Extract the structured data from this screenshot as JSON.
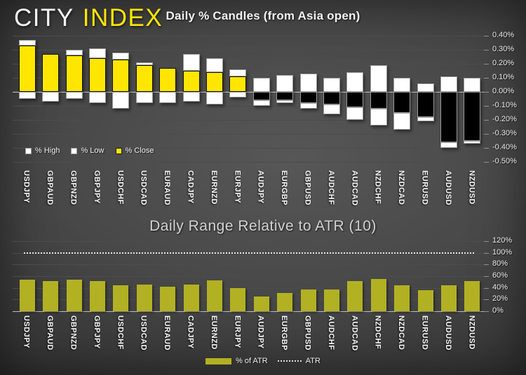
{
  "logo": {
    "city": "CITY",
    "index": "INDEX"
  },
  "colors": {
    "background_center": "#575757",
    "background_edge": "#1c1c1c",
    "candle_close_up": "#FFE600",
    "candle_close_down": "#000000",
    "candle_high_low": "#FFFFFF",
    "atr_bar": "#B2B123",
    "logo_index_yellow": "#FFE600",
    "gridline": "#4C4C4C",
    "zero_line": "#C6C6C6",
    "axis_text": "#E8E8E8"
  },
  "chart_data": [
    {
      "type": "bar",
      "subtype": "stacked-candle",
      "title": "Daily % Candles (from Asia open)",
      "legend": [
        "% High",
        "% Low",
        "% Close"
      ],
      "legend_position": "bottom-left",
      "grid": true,
      "y_axis_side": "right",
      "ylim": [
        -0.5,
        0.4
      ],
      "yticks": [
        "0.40%",
        "0.30%",
        "0.20%",
        "0.10%",
        "0.00%",
        "-0.10%",
        "-0.20%",
        "-0.30%",
        "-0.40%",
        "-0.50%"
      ],
      "categories": [
        "USDJPY",
        "GBPAUD",
        "GBPNZD",
        "GBPJPY",
        "USDCHF",
        "USDCAD",
        "EURAUD",
        "CADJPY",
        "EURNZD",
        "EURJPY",
        "AUDJPY",
        "EURGBP",
        "GBPUSD",
        "AUDCHF",
        "AUDCAD",
        "NZDCHF",
        "NZDCAD",
        "EURUSD",
        "AUDUSD",
        "NZDUSD"
      ],
      "series": [
        {
          "name": "% High",
          "values": [
            0.37,
            0.27,
            0.3,
            0.31,
            0.28,
            0.21,
            0.17,
            0.27,
            0.24,
            0.16,
            0.1,
            0.12,
            0.13,
            0.1,
            0.14,
            0.19,
            0.1,
            0.06,
            0.11,
            0.1
          ]
        },
        {
          "name": "% Low",
          "values": [
            -0.05,
            -0.07,
            -0.05,
            -0.08,
            -0.12,
            -0.08,
            -0.08,
            -0.07,
            -0.09,
            -0.04,
            -0.1,
            -0.08,
            -0.12,
            -0.16,
            -0.2,
            -0.24,
            -0.27,
            -0.21,
            -0.4,
            -0.37
          ]
        },
        {
          "name": "% Close",
          "values": [
            0.33,
            0.27,
            0.26,
            0.24,
            0.23,
            0.19,
            0.17,
            0.15,
            0.14,
            0.11,
            -0.06,
            -0.06,
            -0.08,
            -0.09,
            -0.11,
            -0.12,
            -0.15,
            -0.18,
            -0.36,
            -0.35
          ]
        }
      ]
    },
    {
      "type": "bar",
      "title": "Daily Range Relative to ATR (10)",
      "legend": [
        "% of ATR",
        "ATR"
      ],
      "legend_position": "bottom-center",
      "grid": true,
      "y_axis_side": "right",
      "ylim": [
        0,
        120
      ],
      "yticks": [
        "120%",
        "100%",
        "80%",
        "60%",
        "40%",
        "20%",
        "0%"
      ],
      "atr_reference_level": 100,
      "categories": [
        "USDJPY",
        "GBPAUD",
        "GBPNZD",
        "GBPJPY",
        "USDCHF",
        "USDCAD",
        "EURAUD",
        "CADJPY",
        "EURNZD",
        "EURJPY",
        "AUDJPY",
        "EURGBP",
        "GBPUSD",
        "AUDCHF",
        "AUDCAD",
        "NZDCHF",
        "NZDCAD",
        "EURUSD",
        "AUDUSD",
        "NZDUSD"
      ],
      "series": [
        {
          "name": "% of ATR",
          "values": [
            54,
            52,
            54,
            52,
            44,
            46,
            42,
            46,
            53,
            40,
            25,
            31,
            37,
            37,
            52,
            55,
            44,
            36,
            45,
            52
          ]
        },
        {
          "name": "ATR",
          "type": "dotted-line",
          "constant": 100
        }
      ]
    }
  ]
}
